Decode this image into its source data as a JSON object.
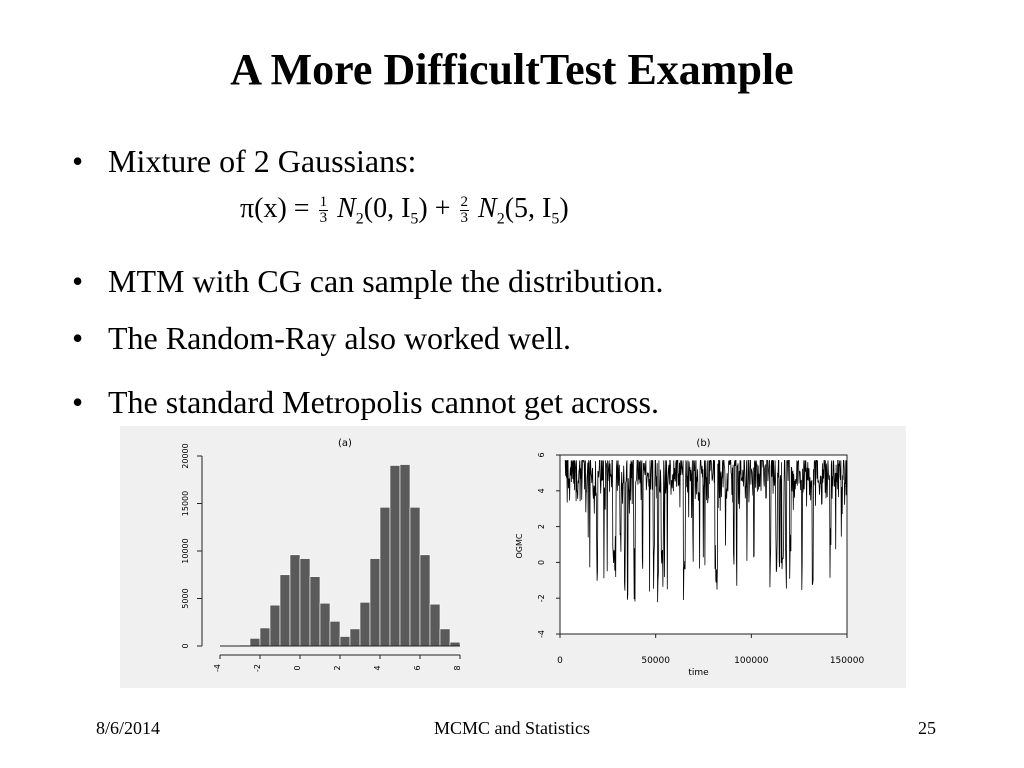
{
  "slide": {
    "title": "A More DifficultTest Example",
    "bullets": [
      "Mixture of 2 Gaussians:",
      "MTM with CG can sample the distribution.",
      "The Random-Ray also worked well.",
      "The standard Metropolis cannot get across."
    ],
    "formula": {
      "lhs": "π(x) =",
      "w1_num": "1",
      "w1_den": "3",
      "term1": "N",
      "term1_sub": "2",
      "term1_args": "(0, I",
      "term1_args_sub": "5",
      "term1_close": ")",
      "plus": "+",
      "w2_num": "2",
      "w2_den": "3",
      "term2": "N",
      "term2_sub": "2",
      "term2_args": "(5, I",
      "term2_args_sub": "5",
      "term2_close": ")"
    }
  },
  "footer": {
    "date": "8/6/2014",
    "center": "MCMC and Statistics",
    "page": "25"
  },
  "chart_data": [
    {
      "type": "bar",
      "title": "(a)",
      "xlabel": "",
      "ylabel": "",
      "xlim": [
        -4,
        8
      ],
      "ylim": [
        0,
        20000
      ],
      "bin_width": 0.5,
      "x_ticks": [
        -4,
        -2,
        0,
        2,
        4,
        6,
        8
      ],
      "y_ticks": [
        0,
        5000,
        10000,
        15000,
        20000
      ],
      "y_tick_labels": [
        "0",
        "5000",
        "10000",
        "15000",
        "20000"
      ],
      "bins_start": [
        -3,
        -2.5,
        -2,
        -1.5,
        -1,
        -0.5,
        0,
        0.5,
        1,
        1.5,
        2,
        2.5,
        3,
        3.5,
        4,
        4.5,
        5,
        5.5,
        6,
        6.5,
        7,
        7.5
      ],
      "values": [
        100,
        800,
        1900,
        4300,
        7500,
        9600,
        9200,
        7300,
        4500,
        2600,
        1000,
        1800,
        4600,
        9200,
        14600,
        19000,
        19100,
        14600,
        9600,
        4400,
        1800,
        400
      ],
      "grid": false,
      "color": "#5a5a5a"
    },
    {
      "type": "line",
      "title": "(b)",
      "xlabel": "time",
      "ylabel": "OGMC",
      "xlim": [
        0,
        150000
      ],
      "ylim": [
        -4,
        6
      ],
      "x_ticks": [
        0,
        50000,
        100000,
        150000
      ],
      "x_tick_labels": [
        "0",
        "50000",
        "100000",
        "150000"
      ],
      "y_ticks": [
        -4,
        -2,
        0,
        2,
        4,
        6
      ],
      "y_tick_labels": [
        "-4",
        "-2",
        "0",
        "2",
        "4",
        "6"
      ],
      "series": [
        {
          "mode_centers": [
            0,
            5
          ],
          "mode_sd": 1,
          "dominant_mode": 5
        }
      ],
      "grid": false,
      "color": "#000000"
    }
  ],
  "colors": {
    "background": "#ffffff",
    "figure_bg": "#f0f0f0",
    "text": "#000000"
  }
}
